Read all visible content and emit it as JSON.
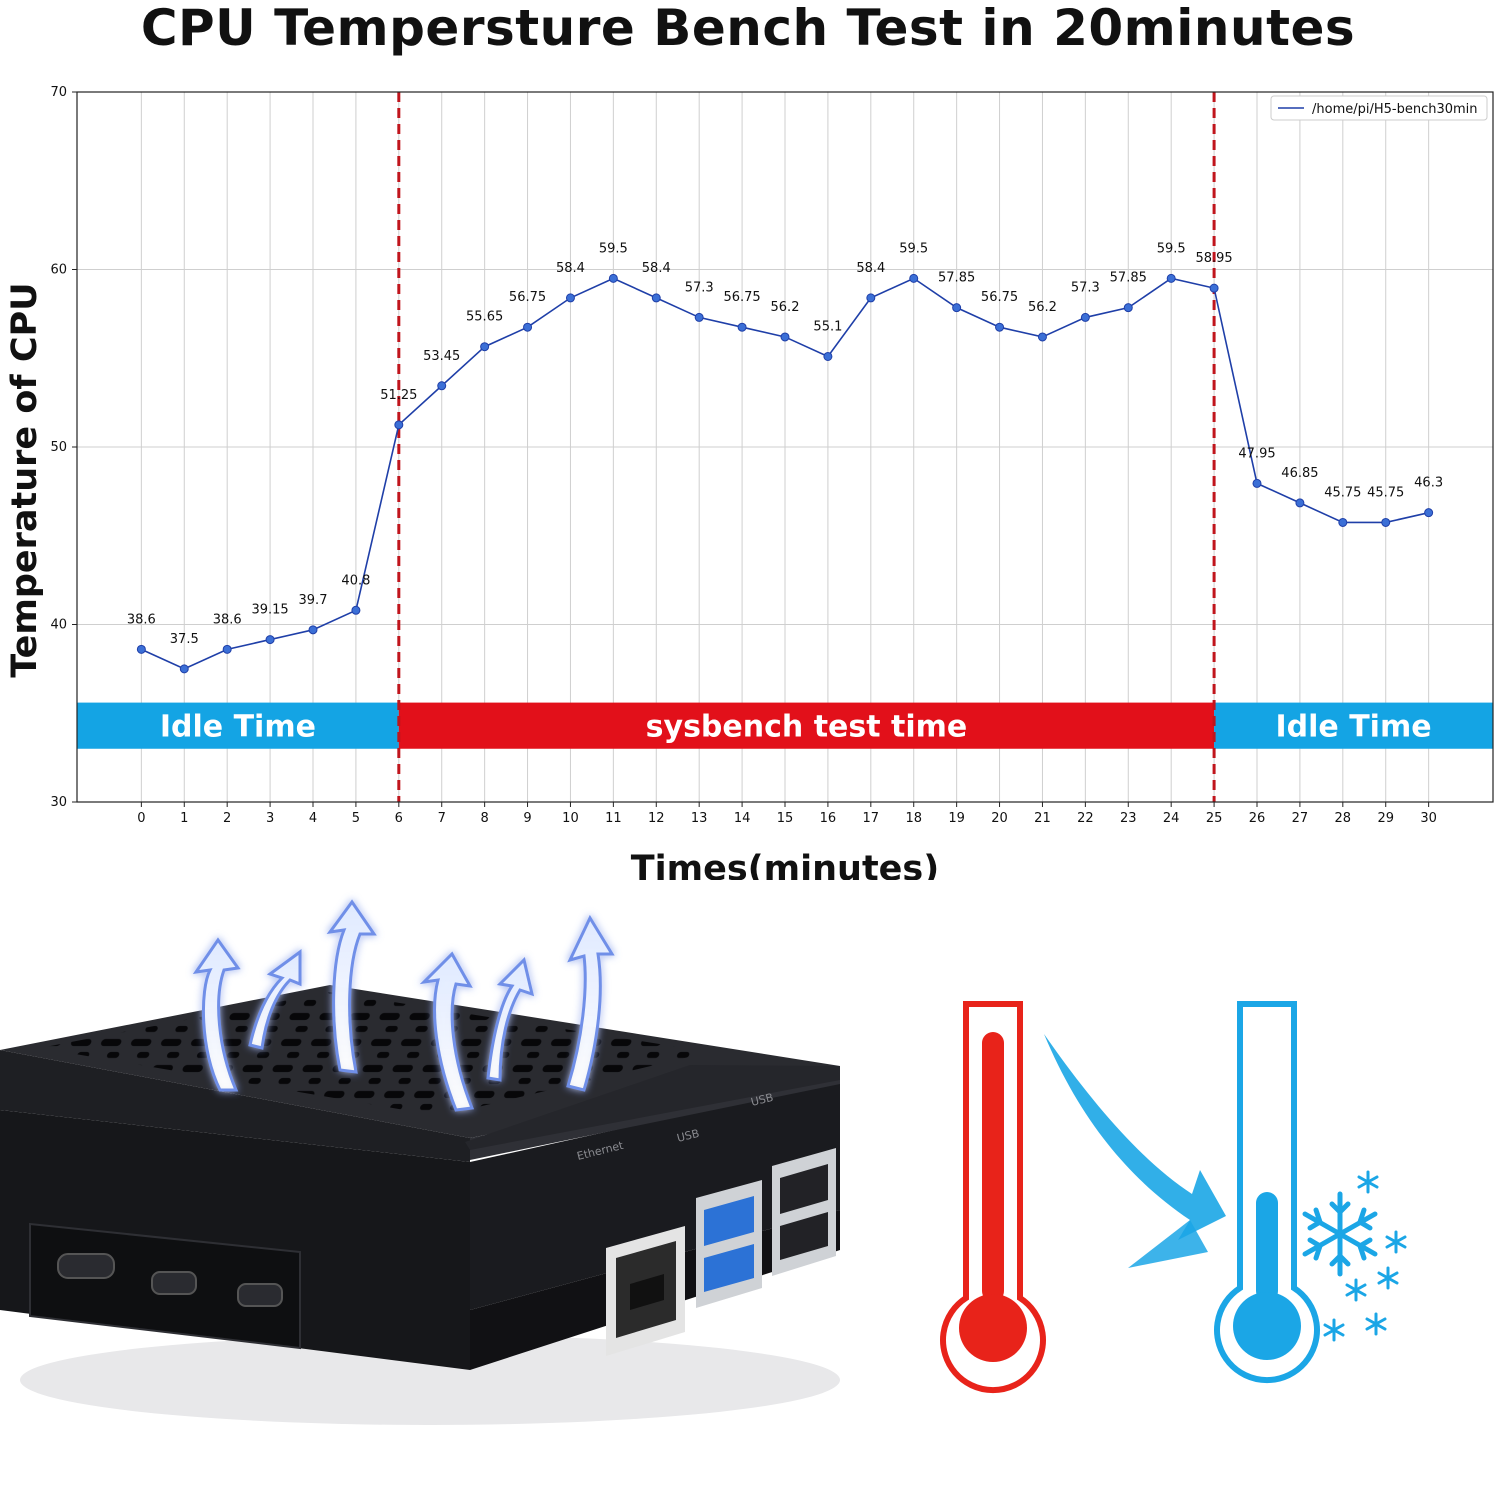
{
  "chart_data": {
    "type": "line",
    "title": "CPU Tempersture Bench Test in 20minutes",
    "xlabel": "Times(minutes)",
    "ylabel": "Temperature of CPU",
    "xlim": [
      -1.5,
      31.5
    ],
    "ylim": [
      30,
      70
    ],
    "x_ticks": [
      0,
      1,
      2,
      3,
      4,
      5,
      6,
      7,
      8,
      9,
      10,
      11,
      12,
      13,
      14,
      15,
      16,
      17,
      18,
      19,
      20,
      21,
      22,
      23,
      24,
      25,
      26,
      27,
      28,
      29,
      30
    ],
    "y_ticks": [
      30,
      40,
      50,
      60,
      70
    ],
    "grid": true,
    "legend_position": "top-right",
    "series": [
      {
        "name": "/home/pi/H5-bench30min",
        "color": "#1f3fa8",
        "x": [
          0,
          1,
          2,
          3,
          4,
          5,
          6,
          7,
          8,
          9,
          10,
          11,
          12,
          13,
          14,
          15,
          16,
          17,
          18,
          19,
          20,
          21,
          22,
          23,
          24,
          25,
          26,
          27,
          28,
          29,
          30
        ],
        "values": [
          38.6,
          37.5,
          38.6,
          39.15,
          39.7,
          40.8,
          51.25,
          53.45,
          55.65,
          56.75,
          58.4,
          59.5,
          58.4,
          57.3,
          56.75,
          56.2,
          55.1,
          58.4,
          59.5,
          57.85,
          56.75,
          56.2,
          57.3,
          57.85,
          59.5,
          58.95,
          47.95,
          46.85,
          45.75,
          45.75,
          46.3
        ],
        "labels": [
          "38.6",
          "37.5",
          "38.6",
          "39.15",
          "39.7",
          "40.8",
          "51.25",
          "53.45",
          "55.65",
          "56.75",
          "58.4",
          "59.5",
          "58.4",
          "57.3",
          "56.75",
          "56.2",
          "55.1",
          "58.4",
          "59.5",
          "57.85",
          "56.75",
          "56.2",
          "57.3",
          "57.85",
          "59.5",
          "58.95",
          "47.95",
          "46.85",
          "45.75",
          "45.75",
          "46.3"
        ]
      }
    ],
    "vertical_lines": [
      {
        "x": 6,
        "color": "#c0151c",
        "style": "dashed"
      },
      {
        "x": 25,
        "color": "#c0151c",
        "style": "dashed"
      }
    ],
    "phase_bands": [
      {
        "label": "Idle Time",
        "x_start": -1.5,
        "x_end": 6,
        "y_low": 33,
        "y_high": 35.6,
        "color": "#14a4e4"
      },
      {
        "label": "sysbench test time",
        "x_start": 6,
        "x_end": 25,
        "y_low": 33,
        "y_high": 35.6,
        "color": "#e2101a"
      },
      {
        "label": "Idle Time",
        "x_start": 25,
        "x_end": 31.5,
        "y_low": 33,
        "y_high": 35.6,
        "color": "#14a4e4"
      }
    ]
  },
  "illustration": {
    "case_port_labels": [
      "Ethernet",
      "USB",
      "USB"
    ],
    "icons": [
      "heat-arrows-icon",
      "raspberry-pi-case",
      "hot-thermometer-icon",
      "cooling-arrow-icon",
      "cold-thermometer-icon",
      "snowflake-icon"
    ],
    "colors": {
      "case": "#1d1e22",
      "hot": "#e8231a",
      "cold": "#1ba6e6",
      "usb3": "#2c72d6"
    }
  }
}
